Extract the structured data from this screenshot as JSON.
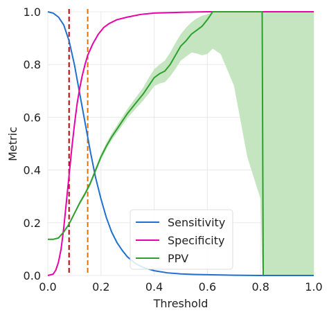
{
  "chart_data": {
    "type": "line",
    "xlabel": "Threshold",
    "ylabel": "Metric",
    "xlim": [
      0,
      1
    ],
    "ylim": [
      0,
      1
    ],
    "xticks": [
      "0.0",
      "0.2",
      "0.4",
      "0.6",
      "0.8",
      "1.0"
    ],
    "yticks": [
      "0.0",
      "0.2",
      "0.4",
      "0.6",
      "0.8",
      "1.0"
    ],
    "grid": true,
    "legend_position": "bottom-center",
    "vlines": [
      {
        "x": 0.08,
        "color": "#c00000",
        "style": "dashed"
      },
      {
        "x": 0.15,
        "color": "#e07000",
        "style": "dashed"
      }
    ],
    "series": [
      {
        "name": "Sensitivity",
        "color": "#1f6fd0",
        "x": [
          0,
          0.02,
          0.04,
          0.06,
          0.08,
          0.1,
          0.12,
          0.14,
          0.16,
          0.18,
          0.2,
          0.22,
          0.24,
          0.26,
          0.28,
          0.3,
          0.33,
          0.36,
          0.4,
          0.45,
          0.5,
          0.55,
          0.6,
          0.7,
          0.8,
          1.0
        ],
        "y": [
          1.0,
          0.995,
          0.98,
          0.95,
          0.89,
          0.8,
          0.69,
          0.58,
          0.47,
          0.37,
          0.29,
          0.22,
          0.165,
          0.125,
          0.095,
          0.07,
          0.045,
          0.03,
          0.018,
          0.01,
          0.006,
          0.004,
          0.003,
          0.001,
          0.0,
          0.0
        ]
      },
      {
        "name": "Specificity",
        "color": "#e800a8",
        "x": [
          0,
          0.02,
          0.03,
          0.04,
          0.05,
          0.06,
          0.07,
          0.08,
          0.09,
          0.1,
          0.11,
          0.12,
          0.13,
          0.14,
          0.15,
          0.17,
          0.19,
          0.21,
          0.23,
          0.26,
          0.3,
          0.35,
          0.4,
          0.5,
          0.6,
          1.0
        ],
        "y": [
          0.0,
          0.005,
          0.02,
          0.05,
          0.1,
          0.18,
          0.28,
          0.38,
          0.48,
          0.57,
          0.65,
          0.71,
          0.76,
          0.8,
          0.835,
          0.88,
          0.915,
          0.94,
          0.955,
          0.97,
          0.98,
          0.99,
          0.995,
          0.998,
          1.0,
          1.0
        ]
      },
      {
        "name": "PPV",
        "color": "#2ca02c",
        "band_color": "#c5e5c0",
        "x": [
          0,
          0.02,
          0.04,
          0.06,
          0.08,
          0.1,
          0.12,
          0.14,
          0.16,
          0.18,
          0.2,
          0.22,
          0.24,
          0.26,
          0.28,
          0.3,
          0.32,
          0.34,
          0.36,
          0.38,
          0.4,
          0.42,
          0.44,
          0.46,
          0.48,
          0.5,
          0.52,
          0.54,
          0.56,
          0.58,
          0.6,
          0.62,
          0.65,
          0.7,
          0.75,
          0.8,
          0.806,
          0.81
        ],
        "y": [
          0.137,
          0.137,
          0.142,
          0.165,
          0.195,
          0.235,
          0.275,
          0.31,
          0.35,
          0.4,
          0.45,
          0.49,
          0.525,
          0.555,
          0.585,
          0.615,
          0.64,
          0.665,
          0.69,
          0.72,
          0.75,
          0.765,
          0.775,
          0.8,
          0.835,
          0.87,
          0.89,
          0.915,
          0.93,
          0.945,
          0.97,
          1.0,
          1.0,
          1.0,
          1.0,
          1.0,
          1.0,
          0.0
        ],
        "ci_lower": [
          0.135,
          0.135,
          0.139,
          0.161,
          0.19,
          0.229,
          0.268,
          0.302,
          0.341,
          0.39,
          0.439,
          0.478,
          0.512,
          0.541,
          0.569,
          0.598,
          0.62,
          0.643,
          0.665,
          0.69,
          0.718,
          0.728,
          0.733,
          0.755,
          0.783,
          0.815,
          0.83,
          0.845,
          0.842,
          0.835,
          0.84,
          0.86,
          0.84,
          0.72,
          0.45,
          0.29,
          0.03,
          0.0
        ],
        "ci_upper": [
          0.139,
          0.139,
          0.145,
          0.169,
          0.2,
          0.241,
          0.282,
          0.318,
          0.359,
          0.41,
          0.461,
          0.502,
          0.538,
          0.569,
          0.601,
          0.632,
          0.66,
          0.687,
          0.715,
          0.75,
          0.782,
          0.8,
          0.815,
          0.845,
          0.882,
          0.915,
          0.94,
          0.96,
          0.975,
          0.985,
          0.99,
          1.0,
          1.0,
          1.0,
          1.0,
          1.0,
          1.0,
          1.0
        ]
      }
    ]
  }
}
